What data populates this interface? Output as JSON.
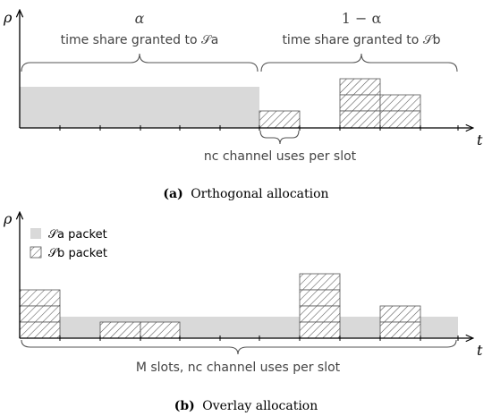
{
  "panel_a": {
    "y_label": "ρ",
    "x_label": "t",
    "alpha_label": "α",
    "alpha_text": "time share granted to 𝒮a",
    "one_minus_alpha_label": "1 − α",
    "one_minus_alpha_text": "time share granted to 𝒮b",
    "slot_brace_text": "nc channel uses per slot",
    "caption_letter": "(a)",
    "caption_text": "Orthogonal allocation"
  },
  "panel_b": {
    "y_label": "ρ",
    "x_label": "t",
    "legend": [
      {
        "label": "𝒮a packet",
        "fill": "gray"
      },
      {
        "label": "𝒮b packet",
        "fill": "hatched"
      }
    ],
    "brace_text": "M slots, nc channel uses per slot",
    "caption_letter": "(b)",
    "caption_text": "Overlay allocation"
  },
  "colors": {
    "gray_fill": "#d9d9d9",
    "hatch_line": "#555555",
    "axis": "#000000",
    "text": "#444444"
  }
}
